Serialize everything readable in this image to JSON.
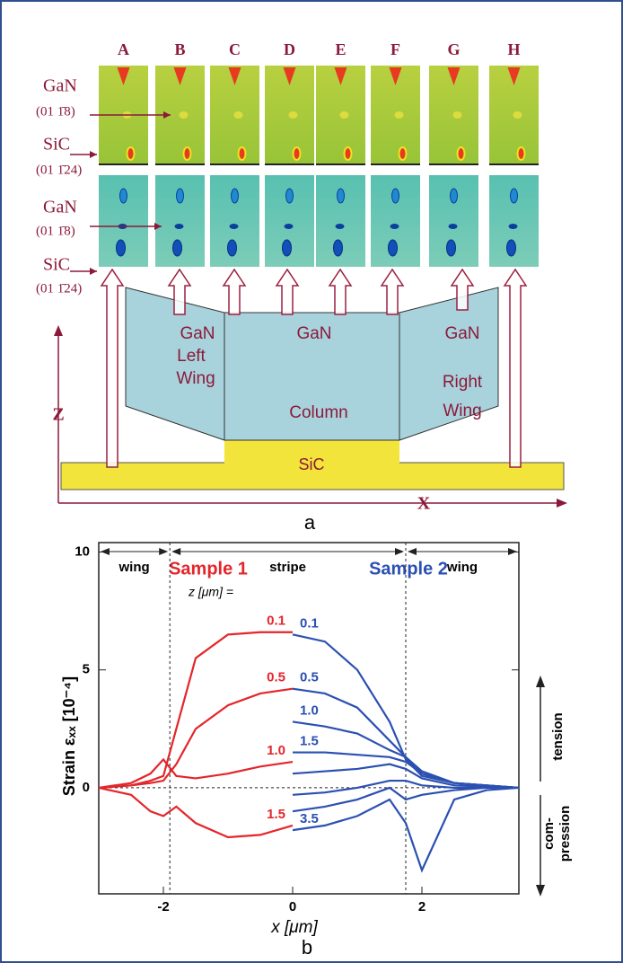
{
  "diagram": {
    "columns": [
      "A",
      "B",
      "C",
      "D",
      "E",
      "F",
      "G",
      "H"
    ],
    "left_labels": [
      {
        "material": "GaN",
        "plane": "(01 1̄8)"
      },
      {
        "material": "SiC",
        "plane": "(01 1̄24)"
      }
    ],
    "regions": {
      "left_wing": [
        "GaN",
        "Left",
        "Wing"
      ],
      "column": [
        "GaN",
        "Column"
      ],
      "right_wing": [
        "GaN",
        "Right",
        "Wing"
      ],
      "substrate": "SiC"
    },
    "z_axis": "Z",
    "x_axis": "X",
    "panel": "a"
  },
  "chart_data": {
    "type": "line",
    "panel": "b",
    "sample_titles": [
      {
        "text": "Sample 1",
        "color": "#e3262b"
      },
      {
        "text": "Sample 2",
        "color": "#2b50b2"
      }
    ],
    "regions": [
      "wing",
      "stripe",
      "wing"
    ],
    "boundaries": [
      -1.9,
      1.75
    ],
    "z_label": "z [μm] =",
    "tension": "tension",
    "compression": [
      "com-",
      "pression"
    ],
    "xlabel": "x  [μm]",
    "ylabel": "Strain  εₓₓ  [10⁻⁴]",
    "xlim": [
      -3,
      3.5
    ],
    "ylim": [
      -4.5,
      10.4
    ],
    "xticks": [
      -2,
      0,
      2
    ],
    "yticks": [
      0,
      5,
      10
    ],
    "series": [
      {
        "name": "0.1",
        "color": "#e3262b",
        "x": [
          -3,
          -2.5,
          -2.2,
          -2,
          -1.8,
          -1.5,
          -1,
          -0.5,
          0
        ],
        "values": [
          0,
          0.1,
          0.3,
          0.5,
          2.5,
          5.5,
          6.5,
          6.6,
          6.6
        ]
      },
      {
        "name": "0.5",
        "color": "#e3262b",
        "x": [
          -3,
          -2.5,
          -2.2,
          -2,
          -1.8,
          -1.5,
          -1,
          -0.5,
          0
        ],
        "values": [
          0,
          0.1,
          0.2,
          0.3,
          1.0,
          2.5,
          3.5,
          4.0,
          4.2
        ]
      },
      {
        "name": "1.0",
        "color": "#e3262b",
        "x": [
          -3,
          -2.5,
          -2.2,
          -2,
          -1.8,
          -1.5,
          -1,
          -0.5,
          0
        ],
        "values": [
          0,
          0.2,
          0.6,
          1.2,
          0.5,
          0.4,
          0.6,
          0.9,
          1.1
        ]
      },
      {
        "name": "1.5",
        "color": "#e3262b",
        "x": [
          -3,
          -2.5,
          -2.2,
          -2,
          -1.8,
          -1.5,
          -1,
          -0.5,
          0
        ],
        "values": [
          0,
          -0.3,
          -1.0,
          -1.2,
          -0.8,
          -1.5,
          -2.1,
          -2.0,
          -1.6
        ]
      },
      {
        "name": "0.1",
        "color": "#2b50b2",
        "x": [
          0,
          0.5,
          1,
          1.5,
          1.75,
          2,
          2.5,
          3,
          3.5
        ],
        "values": [
          6.5,
          6.2,
          5,
          2.8,
          1.2,
          0.5,
          0.2,
          0.1,
          0
        ]
      },
      {
        "name": "0.5",
        "color": "#2b50b2",
        "x": [
          0,
          0.5,
          1,
          1.5,
          1.75,
          2,
          2.5,
          3,
          3.5
        ],
        "values": [
          4.2,
          4,
          3.4,
          2,
          1.3,
          0.6,
          0.2,
          0.1,
          0
        ]
      },
      {
        "name": "1.0",
        "color": "#2b50b2",
        "x": [
          0,
          0.5,
          1,
          1.5,
          1.75,
          2,
          2.5,
          3,
          3.5
        ],
        "values": [
          2.8,
          2.6,
          2.3,
          1.6,
          1.3,
          0.7,
          0.2,
          0.1,
          0
        ]
      },
      {
        "name": "1.5",
        "color": "#2b50b2",
        "x": [
          0,
          0.5,
          1,
          1.5,
          1.75,
          2,
          2.5,
          3,
          3.5
        ],
        "values": [
          1.5,
          1.5,
          1.4,
          1.3,
          1.1,
          0.6,
          0.2,
          0.1,
          0
        ]
      },
      {
        "name": null,
        "color": "#2b50b2",
        "x": [
          0,
          0.5,
          1,
          1.5,
          1.75,
          2,
          2.5,
          3,
          3.5
        ],
        "values": [
          0.6,
          0.7,
          0.8,
          1.0,
          0.8,
          0.4,
          0.1,
          0.05,
          0
        ]
      },
      {
        "name": null,
        "color": "#2b50b2",
        "x": [
          0,
          0.5,
          1,
          1.5,
          1.75,
          2,
          2.5,
          3,
          3.5
        ],
        "values": [
          -0.3,
          -0.2,
          0,
          0.3,
          0.3,
          0.1,
          0,
          0,
          0
        ]
      },
      {
        "name": null,
        "color": "#2b50b2",
        "x": [
          0,
          0.5,
          1,
          1.5,
          1.75,
          2,
          2.5,
          3,
          3.5
        ],
        "values": [
          -1.0,
          -0.8,
          -0.5,
          0,
          -0.5,
          -0.3,
          -0.1,
          0,
          0
        ]
      },
      {
        "name": "3.5",
        "color": "#2b50b2",
        "x": [
          0,
          0.5,
          1,
          1.5,
          1.75,
          2,
          2.5,
          3,
          3.5
        ],
        "values": [
          -1.8,
          -1.6,
          -1.2,
          -0.5,
          -1.5,
          -3.5,
          -0.5,
          -0.1,
          0
        ]
      }
    ]
  }
}
